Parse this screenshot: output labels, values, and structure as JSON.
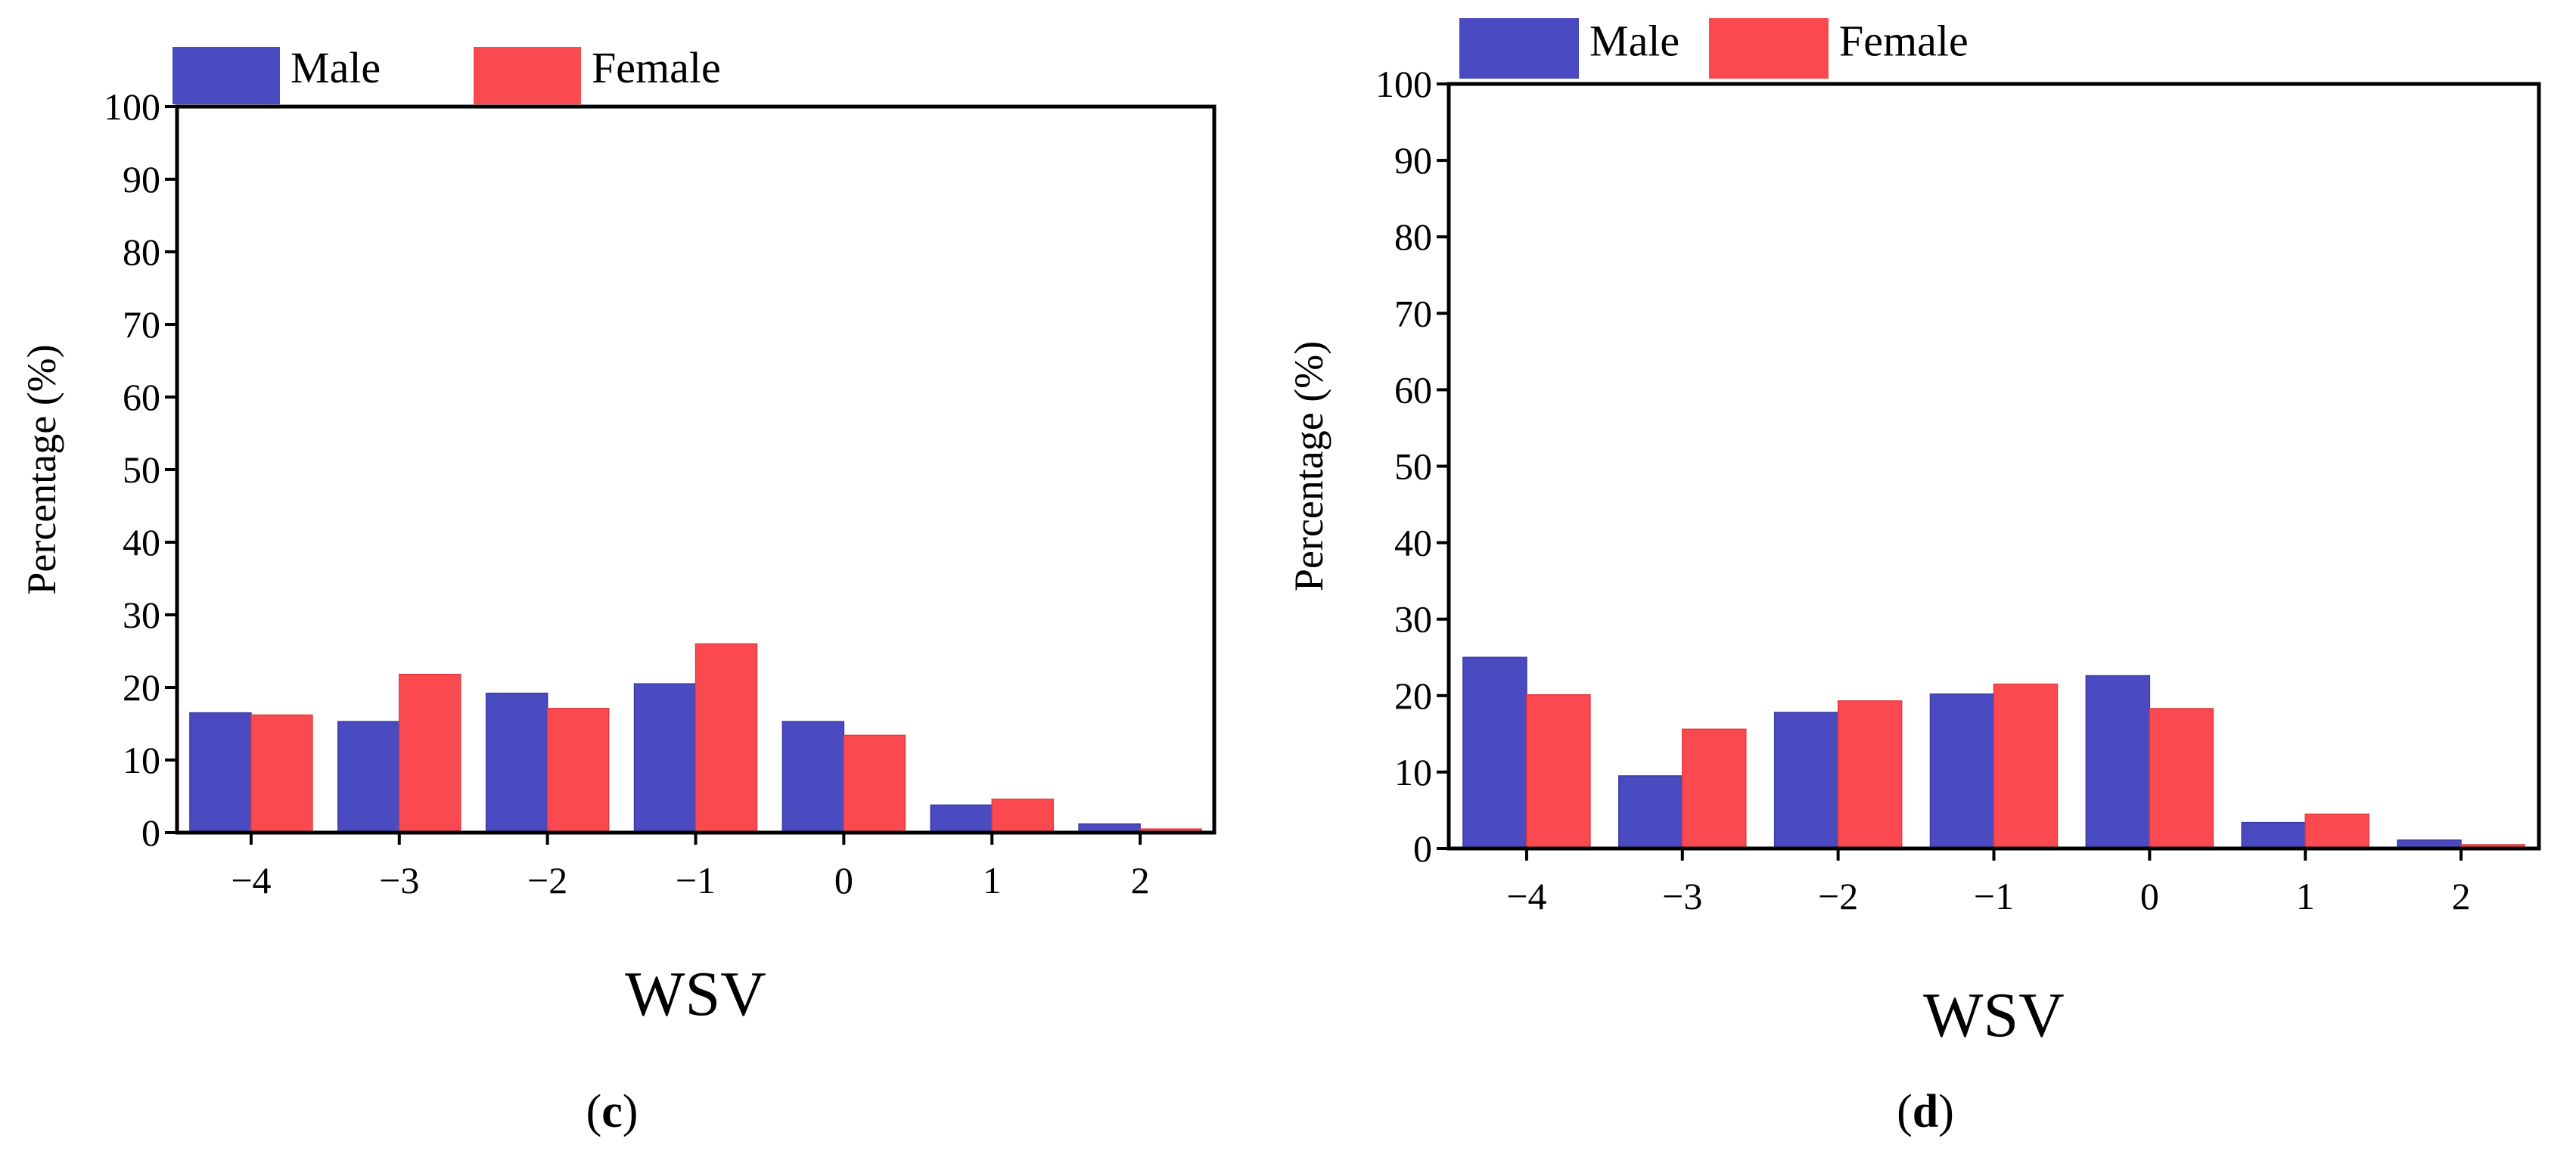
{
  "chart_data": [
    {
      "type": "bar",
      "panel_label": "(c)",
      "panel_letter": "c",
      "categories": [
        "−4",
        "−3",
        "−2",
        "−1",
        "0",
        "1",
        "2"
      ],
      "series": [
        {
          "name": "Male",
          "color": "#4b4bc1",
          "values": [
            16.5,
            15.3,
            19.2,
            20.5,
            15.3,
            3.8,
            1.2
          ]
        },
        {
          "name": "Female",
          "color": "#fb4a4f",
          "values": [
            16.2,
            21.8,
            17.1,
            26.0,
            13.4,
            4.6,
            0.5
          ]
        }
      ],
      "xlabel": "WSV",
      "ylabel": "Percentage (%)",
      "ylim": [
        0,
        100
      ],
      "yticks": [
        "0",
        "10",
        "20",
        "30",
        "40",
        "50",
        "60",
        "70",
        "80",
        "90",
        "100"
      ],
      "legend_position": "top-left",
      "grid": false
    },
    {
      "type": "bar",
      "panel_label": "(d)",
      "panel_letter": "d",
      "categories": [
        "−4",
        "−3",
        "−2",
        "−1",
        "0",
        "1",
        "2"
      ],
      "series": [
        {
          "name": "Male",
          "color": "#4b4bc1",
          "values": [
            25.0,
            9.5,
            17.8,
            20.2,
            22.6,
            3.4,
            1.1
          ]
        },
        {
          "name": "Female",
          "color": "#fb4a4f",
          "values": [
            20.1,
            15.6,
            19.3,
            21.5,
            18.3,
            4.5,
            0.5
          ]
        }
      ],
      "xlabel": "WSV",
      "ylabel": "Percentage (%)",
      "ylim": [
        0,
        100
      ],
      "yticks": [
        "0",
        "10",
        "20",
        "30",
        "40",
        "50",
        "60",
        "70",
        "80",
        "90",
        "100"
      ],
      "legend_position": "top-left",
      "grid": false
    }
  ]
}
